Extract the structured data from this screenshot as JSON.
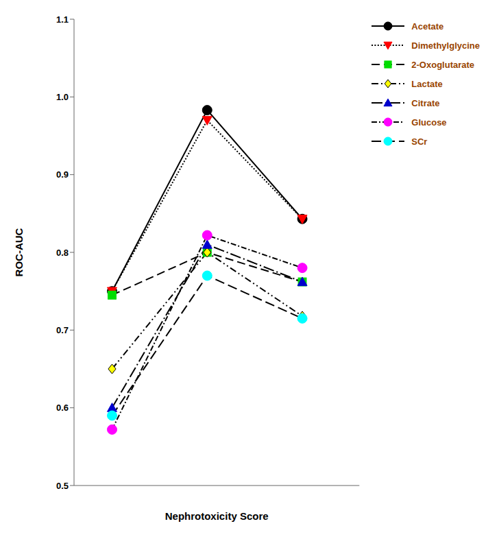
{
  "chart_data": {
    "type": "line",
    "xlabel": "Nephrotoxicity Score",
    "ylabel": "ROC-AUC",
    "x": [
      1,
      2,
      3
    ],
    "xlim": [
      0.6,
      3.6
    ],
    "ylim": [
      0.5,
      1.1
    ],
    "yticks": [
      0.5,
      0.6,
      0.7,
      0.8,
      0.9,
      {
        "value": 1.0,
        "label": "1.0"
      },
      1.1
    ],
    "tick_labels": "y",
    "grid": false,
    "legend": "upper right",
    "series": [
      {
        "name": "Acetate",
        "values": [
          0.75,
          0.983,
          0.843
        ],
        "color": "#000000",
        "marker": "circle",
        "line_style": "solid"
      },
      {
        "name": "Dimethylglycine",
        "values": [
          0.75,
          0.97,
          0.843
        ],
        "color": "#ff0000",
        "marker": "triangle-down",
        "line_style": "dotted"
      },
      {
        "name": "2-Oxoglutarate",
        "values": [
          0.745,
          0.8,
          0.762
        ],
        "color": "#00dd00",
        "marker": "square",
        "line_style": "dashed"
      },
      {
        "name": "Lactate",
        "values": [
          0.65,
          0.8,
          0.718
        ],
        "color": "#ffff00",
        "marker": "diamond",
        "line_style": "dashdotdot"
      },
      {
        "name": "Citrate",
        "values": [
          0.6,
          0.81,
          0.762
        ],
        "color": "#0000cc",
        "marker": "triangle",
        "line_style": "longdashdot"
      },
      {
        "name": "Glucose",
        "values": [
          0.572,
          0.822,
          0.78
        ],
        "color": "#ff00ff",
        "marker": "circle",
        "line_style": "dashdotshort"
      },
      {
        "name": "SCr",
        "values": [
          0.59,
          0.77,
          0.715
        ],
        "color": "#00ffff",
        "marker": "circle",
        "line_style": "longdash"
      }
    ]
  }
}
